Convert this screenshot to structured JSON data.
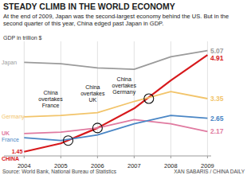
{
  "chart_data": {
    "type": "line",
    "title": "STEADY CLIMB IN THE WORLD ECONOMY",
    "subtitle": "At the end of 2009, Japan was the second-largest economy behind the US. But in the second quarter of this year, China edged past Japan in GDP.",
    "y_label": "GDP in trillion $",
    "x": [
      2004,
      2005,
      2006,
      2007,
      2008,
      2009
    ],
    "xlim": [
      2003.45,
      2009.1
    ],
    "xticks": [
      2004,
      2005,
      2006,
      2007,
      2008,
      2009
    ],
    "ylim": [
      1.3,
      5.4
    ],
    "tick_labels": "x",
    "grid": true,
    "data_labels": true,
    "series": [
      {
        "name": "Japan",
        "color": "#9b9b9b",
        "values": [
          4.65,
          4.6,
          4.45,
          4.4,
          4.85,
          5.07
        ],
        "value_labels": [
          null,
          null,
          null,
          null,
          null,
          "5.07"
        ]
      },
      {
        "name": "CHINA",
        "color": "#d7191c",
        "values": [
          1.45,
          1.75,
          2.3,
          3.0,
          4.0,
          4.91
        ],
        "value_labels": [
          "1.45",
          null,
          null,
          null,
          null,
          "4.91"
        ]
      },
      {
        "name": "Germany",
        "color": "#f2c46a",
        "values": [
          2.7,
          2.75,
          2.85,
          3.25,
          3.6,
          3.35
        ],
        "value_labels": [
          null,
          null,
          null,
          null,
          null,
          "3.35"
        ]
      },
      {
        "name": "UK",
        "color": "#e07aa0",
        "values": [
          2.1,
          2.15,
          2.3,
          2.6,
          2.45,
          2.17
        ],
        "value_labels": [
          null,
          null,
          null,
          null,
          null,
          "2.17"
        ]
      },
      {
        "name": "France",
        "color": "#4a86c5",
        "values": [
          1.95,
          1.85,
          2.05,
          2.45,
          2.75,
          2.65
        ],
        "value_labels": [
          null,
          null,
          null,
          null,
          null,
          "2.65"
        ]
      }
    ],
    "annotations": [
      {
        "text": "China overtakes France",
        "x": 2005.2,
        "y": 1.85
      },
      {
        "text": "China overtakes UK",
        "x": 2006,
        "y": 2.3
      },
      {
        "text": "China overtakes Germany",
        "x": 2007.4,
        "y": 3.35
      }
    ],
    "source": "Source: World Bank, National Bureau of Statistics",
    "credit": "XAN SABARIS / CHINA DAILY"
  }
}
